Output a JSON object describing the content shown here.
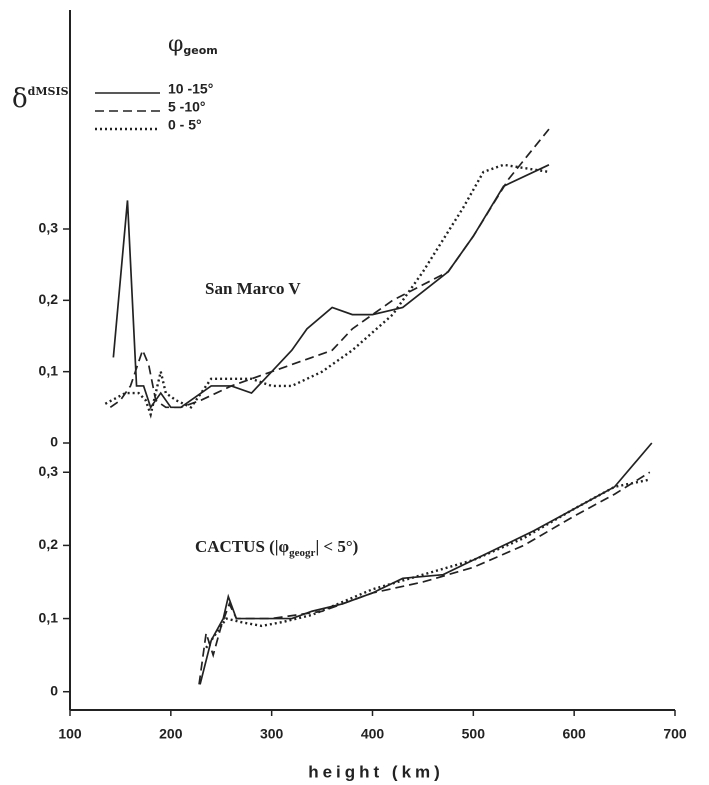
{
  "chart_data": [
    {
      "type": "line",
      "y_label": "δ",
      "y_label_sup": "dMSIS",
      "legend_title": "φ",
      "legend_title_sub": "geom",
      "annotation": "San Marco V",
      "ylim": [
        0,
        0.6
      ],
      "yticks": [
        {
          "value": 0,
          "label": "0"
        },
        {
          "value": 0.1,
          "label": "0,1"
        },
        {
          "value": 0.2,
          "label": "0,2"
        },
        {
          "value": 0.3,
          "label": "0,3"
        }
      ],
      "series": [
        {
          "name": "10 -15°",
          "color": "#222",
          "dash": "solid",
          "x": [
            143,
            157,
            166,
            173,
            180,
            190,
            200,
            210,
            220,
            240,
            260,
            280,
            300,
            320,
            335,
            360,
            380,
            400,
            430,
            475,
            500,
            530,
            575
          ],
          "values": [
            0.12,
            0.34,
            0.08,
            0.08,
            0.05,
            0.07,
            0.05,
            0.05,
            0.06,
            0.08,
            0.08,
            0.07,
            0.1,
            0.13,
            0.16,
            0.19,
            0.18,
            0.18,
            0.19,
            0.24,
            0.29,
            0.36,
            0.39
          ]
        },
        {
          "name": "5 -10°",
          "color": "#222",
          "dash": "dashed",
          "x": [
            140,
            150,
            160,
            172,
            178,
            185,
            195,
            210,
            230,
            260,
            300,
            340,
            360,
            380,
            420,
            475,
            500,
            535,
            575
          ],
          "values": [
            0.05,
            0.06,
            0.08,
            0.13,
            0.11,
            0.06,
            0.05,
            0.05,
            0.06,
            0.08,
            0.1,
            0.12,
            0.13,
            0.16,
            0.2,
            0.24,
            0.29,
            0.37,
            0.44
          ]
        },
        {
          "name": "0 - 5°",
          "color": "#222",
          "dash": "dotted",
          "x": [
            135,
            155,
            168,
            175,
            180,
            185,
            190,
            195,
            205,
            220,
            240,
            260,
            280,
            300,
            320,
            350,
            380,
            420,
            450,
            490,
            510,
            530,
            575
          ],
          "values": [
            0.055,
            0.07,
            0.07,
            0.06,
            0.04,
            0.07,
            0.1,
            0.07,
            0.06,
            0.05,
            0.09,
            0.09,
            0.09,
            0.08,
            0.08,
            0.1,
            0.13,
            0.18,
            0.24,
            0.33,
            0.38,
            0.39,
            0.38
          ]
        }
      ]
    },
    {
      "type": "line",
      "x_label": "height (km)",
      "annotation": [
        "CACTUS (|φ",
        "geogr",
        "| < 5°)"
      ],
      "xlim": [
        100,
        700
      ],
      "xticks": [
        100,
        200,
        300,
        400,
        500,
        600,
        700
      ],
      "ylim": [
        -0.025,
        0.34
      ],
      "yticks": [
        {
          "value": 0,
          "label": "0"
        },
        {
          "value": 0.1,
          "label": "0,1"
        },
        {
          "value": 0.2,
          "label": "0,2"
        },
        {
          "value": 0.3,
          "label": "0,3"
        }
      ],
      "series": [
        {
          "color": "#222",
          "dash": "solid",
          "x": [
            229,
            240,
            252,
            257,
            265,
            290,
            320,
            340,
            370,
            400,
            430,
            470,
            500,
            530,
            560,
            600,
            640,
            677
          ],
          "values": [
            0.01,
            0.07,
            0.1,
            0.13,
            0.1,
            0.1,
            0.1,
            0.11,
            0.12,
            0.135,
            0.155,
            0.16,
            0.18,
            0.2,
            0.22,
            0.25,
            0.28,
            0.34
          ]
        },
        {
          "color": "#222",
          "dash": "dashed",
          "x": [
            228,
            235,
            242,
            250,
            258,
            265,
            300,
            350,
            400,
            450,
            500,
            550,
            600,
            640,
            675
          ],
          "values": [
            0.01,
            0.08,
            0.05,
            0.09,
            0.12,
            0.1,
            0.1,
            0.11,
            0.135,
            0.15,
            0.17,
            0.2,
            0.24,
            0.27,
            0.3
          ]
        },
        {
          "color": "#222",
          "dash": "dotted",
          "x": [
            235,
            245,
            255,
            270,
            290,
            310,
            340,
            400,
            450,
            500,
            550,
            600,
            640,
            675
          ],
          "values": [
            0.06,
            0.08,
            0.1,
            0.095,
            0.09,
            0.095,
            0.105,
            0.14,
            0.16,
            0.18,
            0.21,
            0.25,
            0.28,
            0.29
          ]
        }
      ]
    }
  ]
}
